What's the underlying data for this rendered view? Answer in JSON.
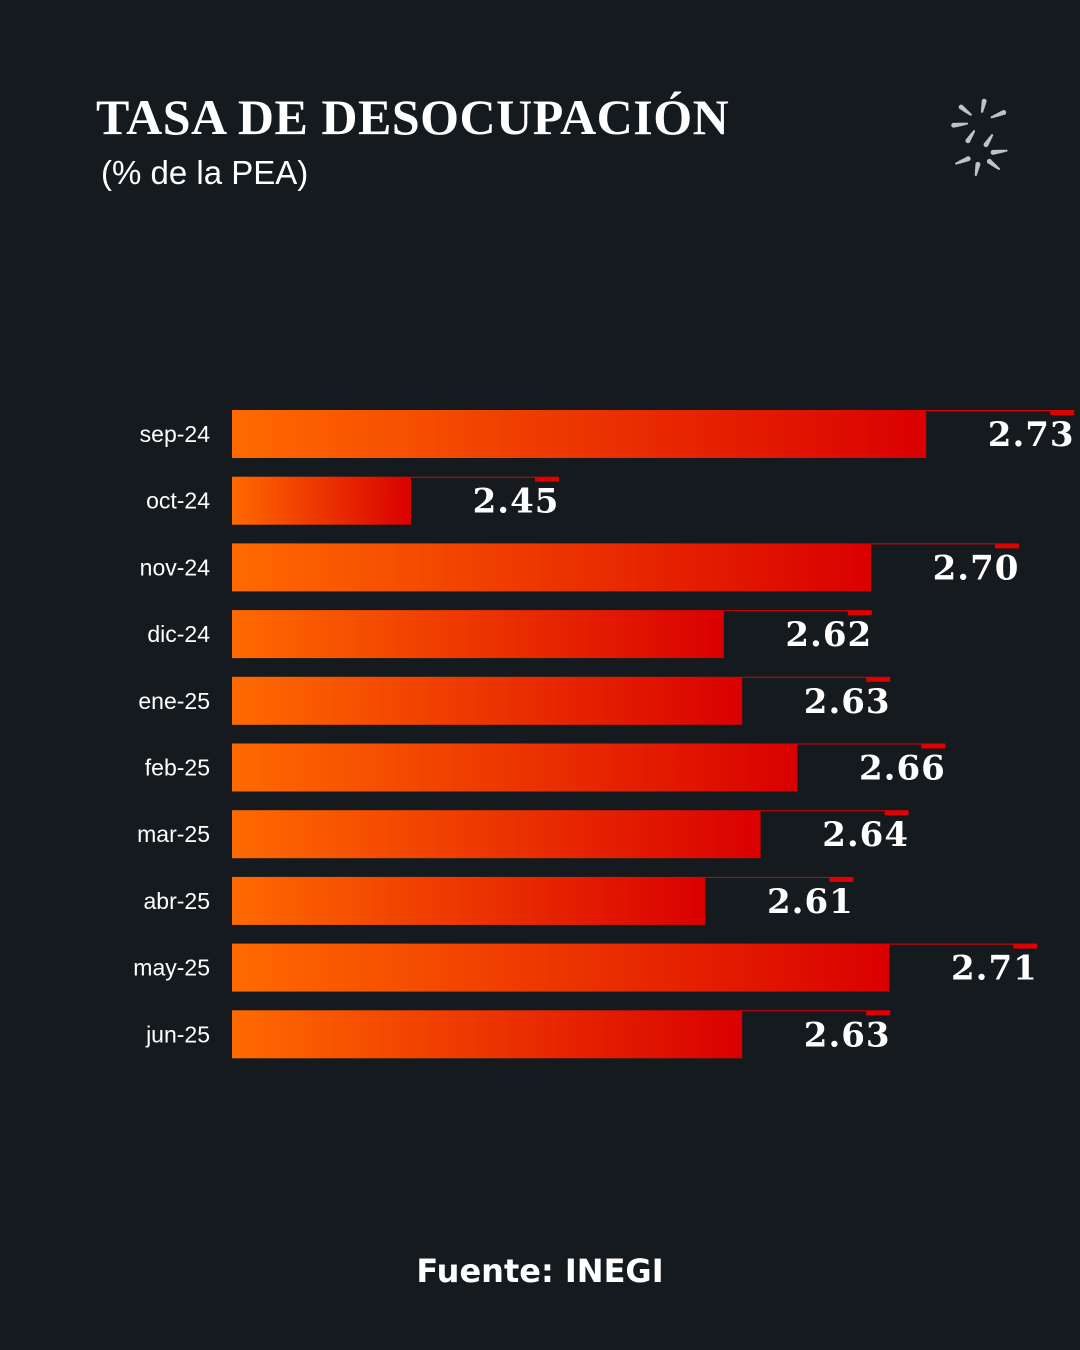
{
  "header": {
    "title": "TASA DE DESOCUPACIÓN",
    "subtitle": "(% de la PEA)"
  },
  "logo": {
    "icon": "dotted-s-logo-icon"
  },
  "footer": {
    "source": "Fuente: INEGI"
  },
  "colors": {
    "background": "#151a1e",
    "bar_start": "#ff6a00",
    "bar_end": "#d90000",
    "accent_line": "#e00000",
    "text": "#ffffff"
  },
  "chart_data": {
    "type": "bar",
    "orientation": "horizontal",
    "title": "TASA DE DESOCUPACIÓN",
    "subtitle": "(% de la PEA)",
    "categories": [
      "sep-24",
      "oct-24",
      "nov-24",
      "dic-24",
      "ene-25",
      "feb-25",
      "mar-25",
      "abr-25",
      "may-25",
      "jun-25"
    ],
    "values": [
      2.73,
      2.45,
      2.7,
      2.62,
      2.63,
      2.66,
      2.64,
      2.61,
      2.71,
      2.63
    ],
    "value_labels": [
      "2.73",
      "2.45",
      "2.70",
      "2.62",
      "2.63",
      "2.66",
      "2.64",
      "2.61",
      "2.71",
      "2.63"
    ],
    "grid": false,
    "legend": "none"
  }
}
